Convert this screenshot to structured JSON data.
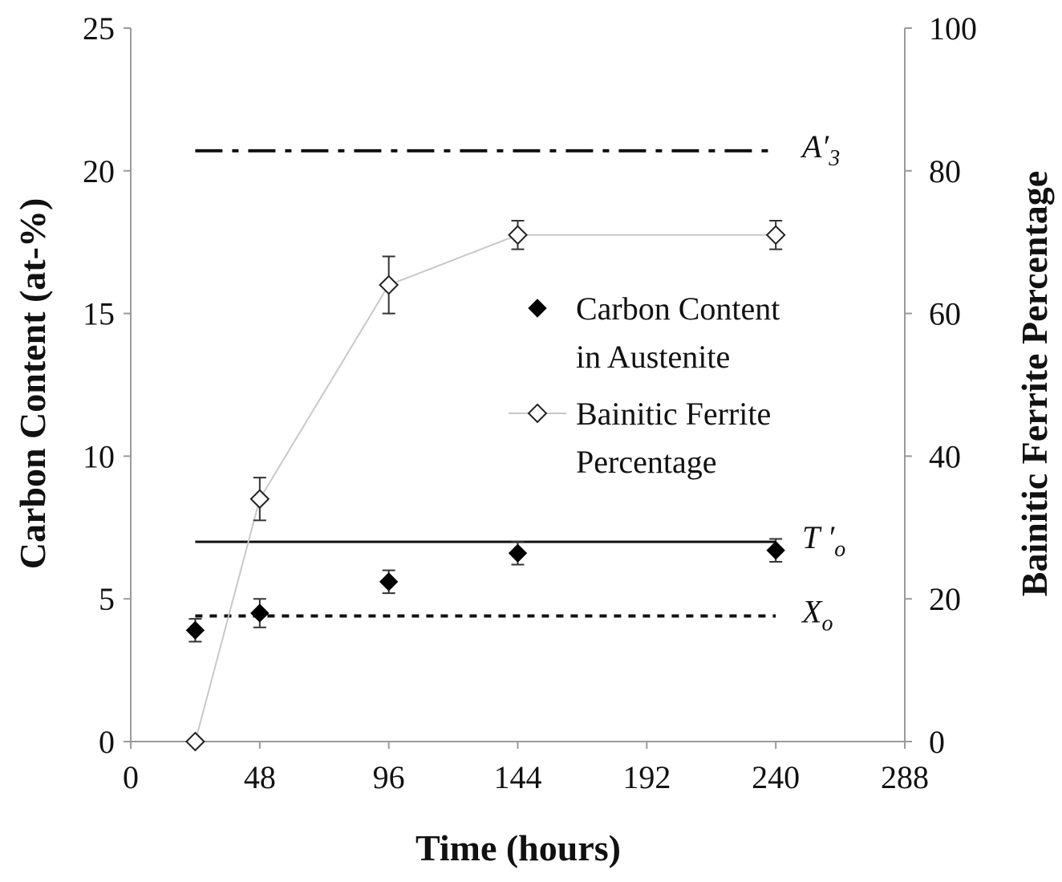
{
  "chart_data": {
    "type": "scatter",
    "x_axis": {
      "label": "Time (hours)",
      "min": 0,
      "max": 288,
      "ticks": [
        0,
        48,
        96,
        144,
        192,
        240,
        288
      ],
      "tick_labels": [
        "0",
        "48",
        "96",
        "144",
        "192",
        "240",
        "288"
      ]
    },
    "y_axis_left": {
      "label": "Carbon Content (at-%)",
      "min": 0,
      "max": 25,
      "ticks": [
        0,
        5,
        10,
        15,
        20,
        25
      ],
      "tick_labels": [
        "0",
        "5",
        "10",
        "15",
        "20",
        "25"
      ]
    },
    "y_axis_right": {
      "label": "Bainitic Ferrite Percentage",
      "min": 0,
      "max": 100,
      "ticks": [
        0,
        20,
        40,
        60,
        80,
        100
      ],
      "tick_labels": [
        "0",
        "20",
        "40",
        "60",
        "80",
        "100"
      ]
    },
    "grid": false,
    "legend": {
      "placement": "center-right",
      "entries": [
        {
          "lines": [
            "Carbon Content",
            "in Austenite"
          ],
          "marker": "filled-diamond",
          "series": 0
        },
        {
          "lines": [
            "Bainitic Ferrite",
            "Percentage"
          ],
          "marker": "open-diamond-line",
          "series": 1
        }
      ]
    },
    "series": [
      {
        "name": "Carbon Content in Austenite",
        "axis": "left",
        "marker": "filled-diamond",
        "color": "#000000",
        "connected": false,
        "x": [
          24,
          48,
          96,
          144,
          240
        ],
        "y": [
          3.9,
          4.5,
          5.6,
          6.6,
          6.7
        ],
        "error": [
          0.4,
          0.5,
          0.4,
          0.4,
          0.4
        ]
      },
      {
        "name": "Bainitic Ferrite Percentage",
        "axis": "right",
        "marker": "open-diamond",
        "color": "#000000",
        "line_color": "#c8c8c8",
        "connected": true,
        "x": [
          24,
          48,
          96,
          144,
          240
        ],
        "y": [
          0,
          34,
          64,
          71,
          71
        ],
        "error": [
          0,
          3,
          4,
          2,
          2
        ]
      }
    ],
    "reference_lines": [
      {
        "label_main": "A′",
        "label_sub": "3",
        "y": 20.7,
        "axis": "left",
        "x_start": 24,
        "x_end": 240,
        "style": "dash-dot"
      },
      {
        "label_main": "T ′",
        "label_sub": "o",
        "y": 7.0,
        "axis": "left",
        "x_start": 24,
        "x_end": 240,
        "style": "solid"
      },
      {
        "label_main": "X",
        "label_sub": "o",
        "y": 4.4,
        "axis": "left",
        "x_start": 24,
        "x_end": 240,
        "style": "dotted"
      }
    ]
  }
}
